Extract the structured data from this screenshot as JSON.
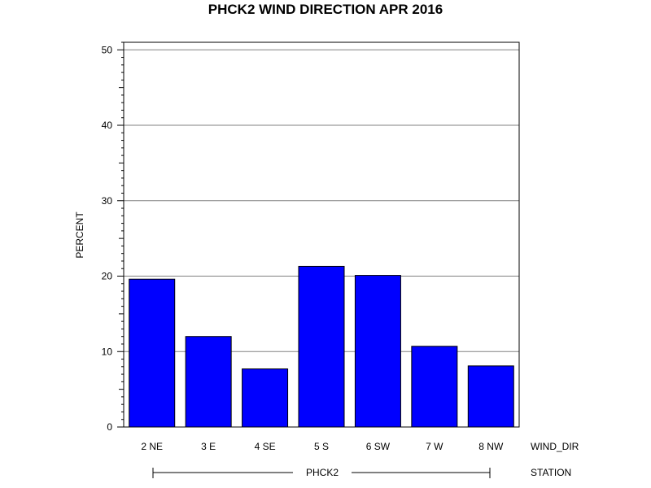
{
  "chart_data": {
    "type": "bar",
    "title": "PHCK2 WIND DIRECTION APR 2016",
    "xlabel": "WIND_DIR",
    "ylabel": "PERCENT",
    "group_label": "STATION",
    "group_value": "PHCK2",
    "categories": [
      "2 NE",
      "3 E",
      "4 SE",
      "5 S",
      "6 SW",
      "7 W",
      "8 NW"
    ],
    "values": [
      19.6,
      12.0,
      7.7,
      21.3,
      20.1,
      10.7,
      8.1
    ],
    "ylim": [
      0,
      51
    ],
    "yticks": [
      0,
      10,
      20,
      30,
      40,
      50
    ],
    "grid": true,
    "bar_color": "#0000ff",
    "bar_edge_color": "#000000",
    "gridline_color": "#808080"
  }
}
